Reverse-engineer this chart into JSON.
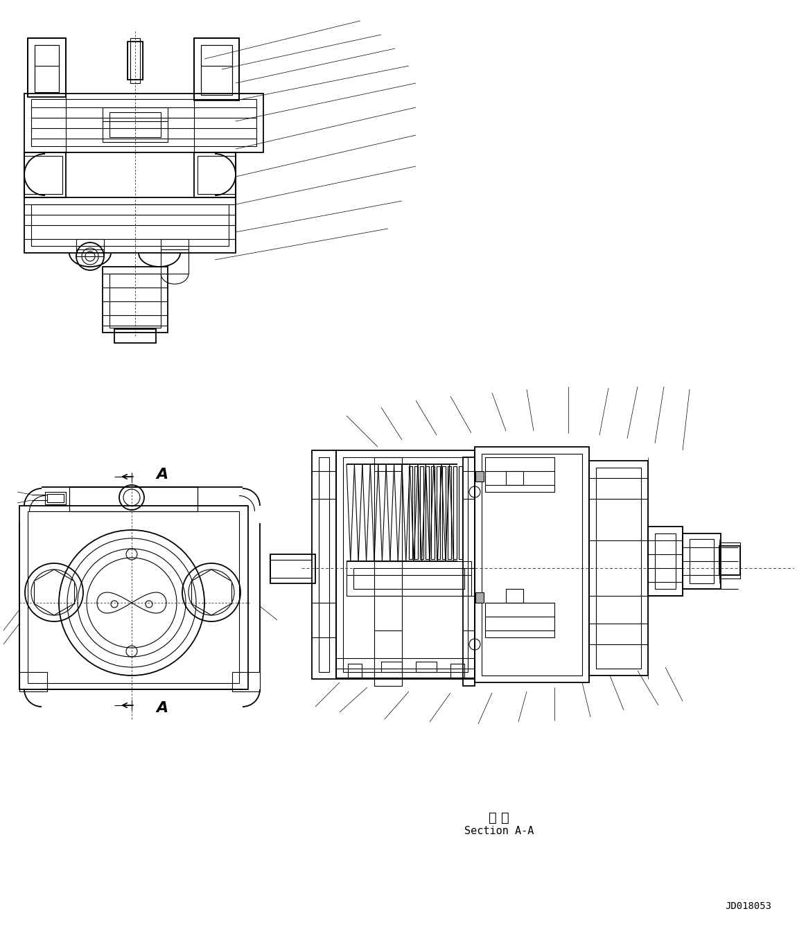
{
  "bg_color": "#ffffff",
  "line_color": "#000000",
  "drawing_code": "JD018053",
  "section_label_jp": "断 面",
  "section_label_en": "Section A-A",
  "fig_width": 11.63,
  "fig_height": 13.38,
  "dpi": 100
}
